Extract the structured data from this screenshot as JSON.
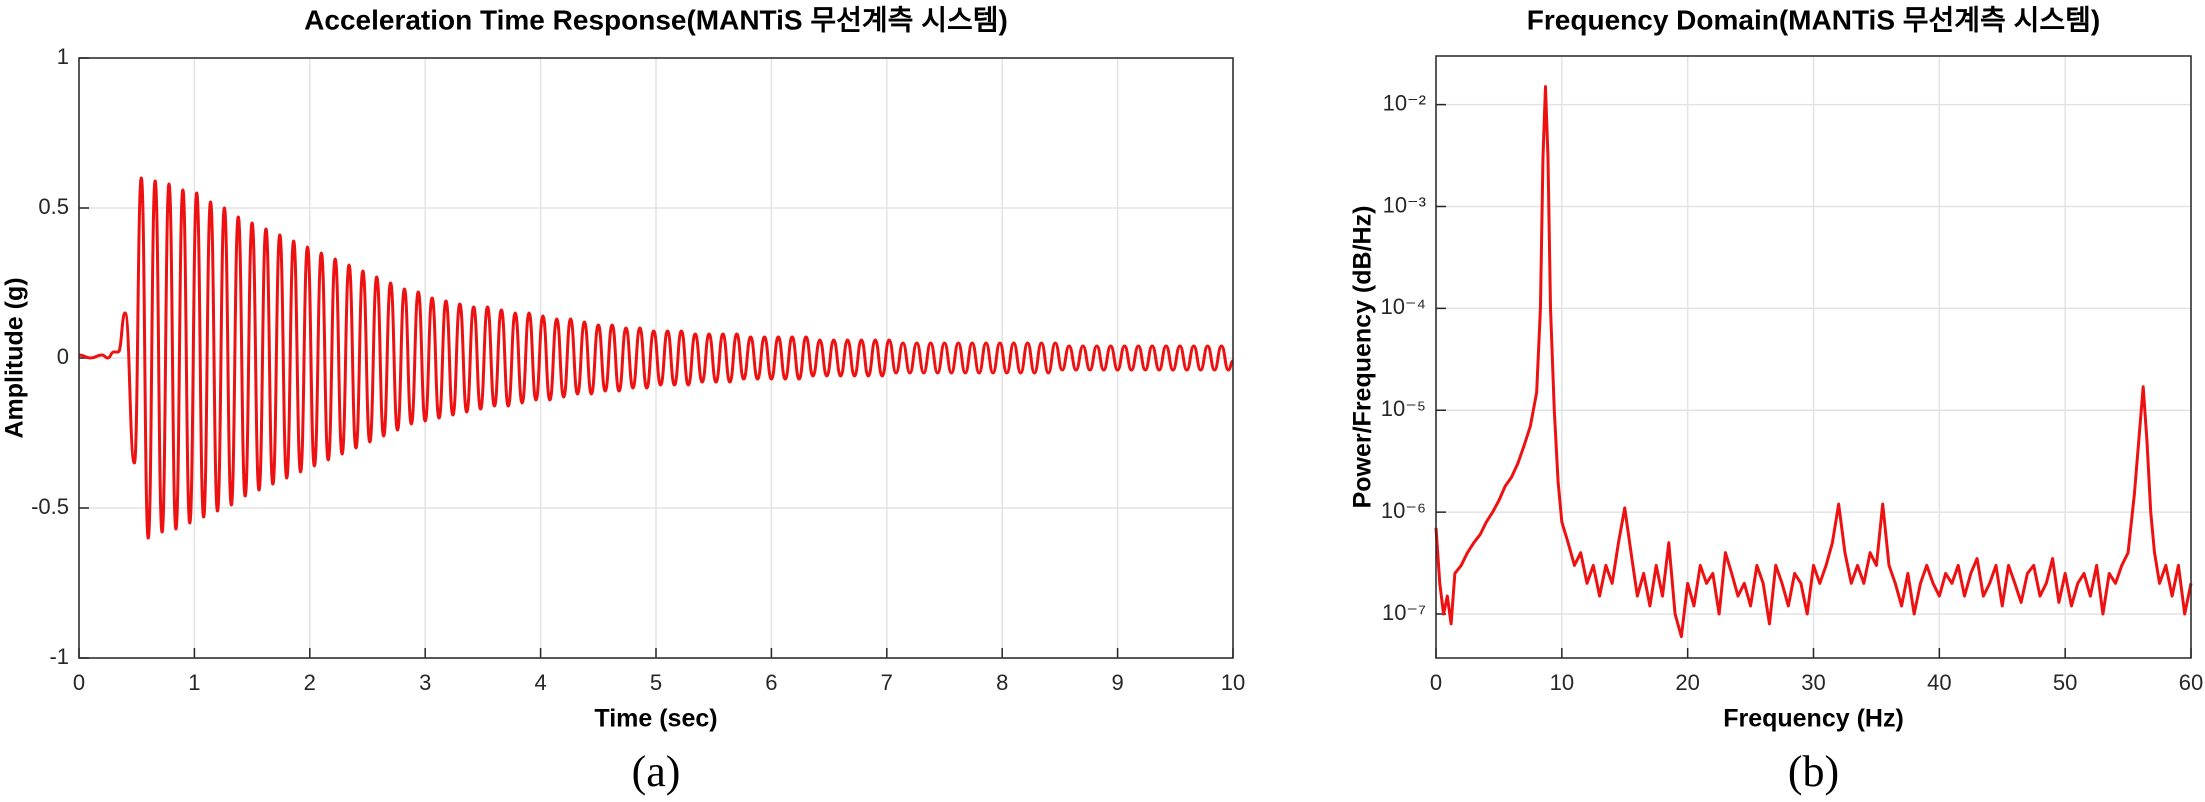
{
  "chart_data": [
    {
      "type": "line",
      "title": "Acceleration Time Response(MANTiS 무선계측 시스템)",
      "xlabel": "Time (sec)",
      "ylabel": "Amplitude (g)",
      "caption": "(a)",
      "xlim": [
        0,
        10
      ],
      "xticks": [
        0,
        1,
        2,
        3,
        4,
        5,
        6,
        7,
        8,
        9,
        10
      ],
      "ylim": [
        -1,
        1
      ],
      "yticks": [
        -1,
        -0.5,
        0,
        0.5,
        1
      ],
      "grid": true,
      "color": "#ee1111",
      "x": [
        0,
        0.1,
        0.2,
        0.25,
        0.3,
        0.34,
        0.4,
        0.48,
        0.54,
        0.6,
        0.66,
        0.72,
        0.78,
        0.84,
        0.9,
        0.96,
        1.02,
        1.08,
        1.14,
        1.2,
        1.26,
        1.32,
        1.38,
        1.44,
        1.5,
        1.56,
        1.62,
        1.68,
        1.74,
        1.8,
        1.86,
        1.92,
        1.98,
        2.04,
        2.1,
        2.16,
        2.22,
        2.28,
        2.34,
        2.4,
        2.46,
        2.52,
        2.58,
        2.64,
        2.7,
        2.76,
        2.82,
        2.88,
        2.94,
        3,
        3.06,
        3.12,
        3.18,
        3.24,
        3.3,
        3.36,
        3.42,
        3.48,
        3.54,
        3.6,
        3.66,
        3.72,
        3.78,
        3.84,
        3.9,
        3.96,
        4.02,
        4.08,
        4.14,
        4.2,
        4.26,
        4.32,
        4.38,
        4.44,
        4.5,
        4.56,
        4.62,
        4.68,
        4.74,
        4.8,
        4.86,
        4.92,
        4.98,
        5.04,
        5.1,
        5.16,
        5.22,
        5.28,
        5.34,
        5.4,
        5.46,
        5.52,
        5.58,
        5.64,
        5.7,
        5.76,
        5.82,
        5.88,
        5.94,
        6,
        6.06,
        6.12,
        6.18,
        6.24,
        6.3,
        6.36,
        6.42,
        6.48,
        6.54,
        6.6,
        6.66,
        6.72,
        6.78,
        6.84,
        6.9,
        6.96,
        7.02,
        7.08,
        7.14,
        7.2,
        7.26,
        7.32,
        7.38,
        7.44,
        7.5,
        7.56,
        7.62,
        7.68,
        7.74,
        7.8,
        7.86,
        7.92,
        7.98,
        8.04,
        8.1,
        8.16,
        8.22,
        8.28,
        8.34,
        8.4,
        8.46,
        8.52,
        8.58,
        8.64,
        8.7,
        8.76,
        8.82,
        8.88,
        8.94,
        9,
        9.06,
        9.12,
        9.18,
        9.24,
        9.3,
        9.36,
        9.42,
        9.48,
        9.54,
        9.6,
        9.66,
        9.72,
        9.78,
        9.84,
        9.9,
        9.96,
        10
      ],
      "values": [
        0.01,
        0,
        0.01,
        0,
        0.02,
        0.02,
        0.15,
        -0.35,
        0.6,
        -0.6,
        0.59,
        -0.58,
        0.58,
        -0.57,
        0.56,
        -0.55,
        0.55,
        -0.53,
        0.52,
        -0.51,
        0.5,
        -0.49,
        0.47,
        -0.46,
        0.45,
        -0.44,
        0.43,
        -0.42,
        0.41,
        -0.4,
        0.39,
        -0.38,
        0.37,
        -0.36,
        0.35,
        -0.34,
        0.33,
        -0.32,
        0.31,
        -0.3,
        0.29,
        -0.28,
        0.27,
        -0.26,
        0.25,
        -0.24,
        0.23,
        -0.22,
        0.22,
        -0.21,
        0.2,
        -0.2,
        0.19,
        -0.19,
        0.18,
        -0.18,
        0.17,
        -0.17,
        0.17,
        -0.16,
        0.16,
        -0.16,
        0.15,
        -0.15,
        0.15,
        -0.14,
        0.14,
        -0.14,
        0.13,
        -0.13,
        0.13,
        -0.12,
        0.12,
        -0.12,
        0.11,
        -0.11,
        0.11,
        -0.11,
        0.1,
        -0.1,
        0.1,
        -0.1,
        0.09,
        -0.09,
        0.09,
        -0.09,
        0.09,
        -0.09,
        0.08,
        -0.08,
        0.08,
        -0.08,
        0.08,
        -0.08,
        0.08,
        -0.07,
        0.07,
        -0.07,
        0.07,
        -0.07,
        0.07,
        -0.07,
        0.07,
        -0.07,
        0.07,
        -0.06,
        0.06,
        -0.06,
        0.06,
        -0.06,
        0.06,
        -0.06,
        0.06,
        -0.06,
        0.06,
        -0.06,
        0.06,
        -0.05,
        0.05,
        -0.05,
        0.05,
        -0.05,
        0.05,
        -0.05,
        0.05,
        -0.05,
        0.05,
        -0.05,
        0.05,
        -0.05,
        0.05,
        -0.05,
        0.05,
        -0.05,
        0.05,
        -0.05,
        0.05,
        -0.05,
        0.05,
        -0.05,
        0.05,
        -0.04,
        0.04,
        -0.04,
        0.04,
        -0.04,
        0.04,
        -0.04,
        0.04,
        -0.04,
        0.04,
        -0.04,
        0.04,
        -0.04,
        0.04,
        -0.04,
        0.04,
        -0.04,
        0.04,
        -0.04,
        0.04,
        -0.04,
        0.04,
        -0.04,
        0.04,
        -0.04,
        -0.01
      ]
    },
    {
      "type": "line",
      "title": "Frequency Domain(MANTiS 무선계측 시스템)",
      "xlabel": "Frequency (Hz)",
      "ylabel": "Power/Frequency (dB/Hz)",
      "caption": "(b)",
      "xlim": [
        0,
        60
      ],
      "xticks": [
        0,
        10,
        20,
        30,
        40,
        50,
        60
      ],
      "log_y": true,
      "ylim": [
        3.7e-08,
        0.03
      ],
      "yticks": [
        {
          "value": 1e-07,
          "label": "10⁻⁷"
        },
        {
          "value": 1e-06,
          "label": "10⁻⁶"
        },
        {
          "value": 1e-05,
          "label": "10⁻⁵"
        },
        {
          "value": 0.0001,
          "label": "10⁻⁴"
        },
        {
          "value": 0.001,
          "label": "10⁻³"
        },
        {
          "value": 0.01,
          "label": "10⁻²"
        }
      ],
      "grid": true,
      "color": "#ee1111",
      "x": [
        0,
        0.3,
        0.6,
        0.9,
        1.2,
        1.5,
        2,
        2.5,
        3,
        3.5,
        4,
        4.5,
        5,
        5.5,
        6,
        6.5,
        7,
        7.5,
        8,
        8.3,
        8.5,
        8.7,
        8.9,
        9.1,
        9.4,
        9.7,
        10,
        10.5,
        11,
        11.5,
        12,
        12.5,
        13,
        13.5,
        14,
        14.5,
        15,
        15.5,
        16,
        16.5,
        17,
        17.5,
        18,
        18.5,
        19,
        19.5,
        20,
        20.5,
        21,
        21.5,
        22,
        22.5,
        23,
        23.5,
        24,
        24.5,
        25,
        25.5,
        26,
        26.5,
        27,
        27.5,
        28,
        28.5,
        29,
        29.5,
        30,
        30.5,
        31,
        31.5,
        32,
        32.5,
        33,
        33.5,
        34,
        34.5,
        35,
        35.5,
        36,
        36.5,
        37,
        37.5,
        38,
        38.5,
        39,
        39.5,
        40,
        40.5,
        41,
        41.5,
        42,
        42.5,
        43,
        43.5,
        44,
        44.5,
        45,
        45.5,
        46,
        46.5,
        47,
        47.5,
        48,
        48.5,
        49,
        49.5,
        50,
        50.5,
        51,
        51.5,
        52,
        52.5,
        53,
        53.5,
        54,
        54.5,
        55,
        55.5,
        55.9,
        56.2,
        56.5,
        56.8,
        57.1,
        57.5,
        58,
        58.5,
        59,
        59.5,
        60
      ],
      "values": [
        7e-07,
        2e-07,
        1e-07,
        1.5e-07,
        8e-08,
        2.5e-07,
        3e-07,
        4e-07,
        5e-07,
        6e-07,
        8e-07,
        1e-06,
        1.3e-06,
        1.8e-06,
        2.2e-06,
        3e-06,
        4.5e-06,
        7e-06,
        1.5e-05,
        0.0001,
        0.003,
        0.015,
        0.003,
        0.0001,
        1e-05,
        2e-06,
        8e-07,
        5e-07,
        3e-07,
        4e-07,
        2e-07,
        3e-07,
        1.5e-07,
        3e-07,
        2e-07,
        5e-07,
        1.1e-06,
        4e-07,
        1.5e-07,
        2.5e-07,
        1.2e-07,
        3e-07,
        1.5e-07,
        5e-07,
        1e-07,
        6e-08,
        2e-07,
        1.2e-07,
        3e-07,
        2e-07,
        2.5e-07,
        1e-07,
        4e-07,
        2.5e-07,
        1.5e-07,
        2e-07,
        1.2e-07,
        3e-07,
        2e-07,
        8e-08,
        3e-07,
        2e-07,
        1.2e-07,
        2.5e-07,
        2e-07,
        1e-07,
        3e-07,
        2e-07,
        3e-07,
        5e-07,
        1.2e-06,
        4e-07,
        2e-07,
        3e-07,
        2e-07,
        4e-07,
        3e-07,
        1.2e-06,
        3e-07,
        2e-07,
        1.2e-07,
        2.5e-07,
        1e-07,
        2e-07,
        3e-07,
        2e-07,
        1.5e-07,
        2.5e-07,
        2e-07,
        3e-07,
        1.5e-07,
        2.5e-07,
        3.5e-07,
        1.5e-07,
        2e-07,
        3e-07,
        1.2e-07,
        3e-07,
        2e-07,
        1.3e-07,
        2.5e-07,
        3e-07,
        1.5e-07,
        2e-07,
        3.5e-07,
        1.3e-07,
        2.5e-07,
        1.2e-07,
        2e-07,
        2.5e-07,
        1.5e-07,
        3e-07,
        1e-07,
        2.5e-07,
        2e-07,
        3e-07,
        4e-07,
        1.5e-06,
        6e-06,
        1.7e-05,
        5e-06,
        1e-06,
        4e-07,
        2e-07,
        3e-07,
        1.5e-07,
        3e-07,
        1e-07,
        2e-07
      ]
    }
  ]
}
